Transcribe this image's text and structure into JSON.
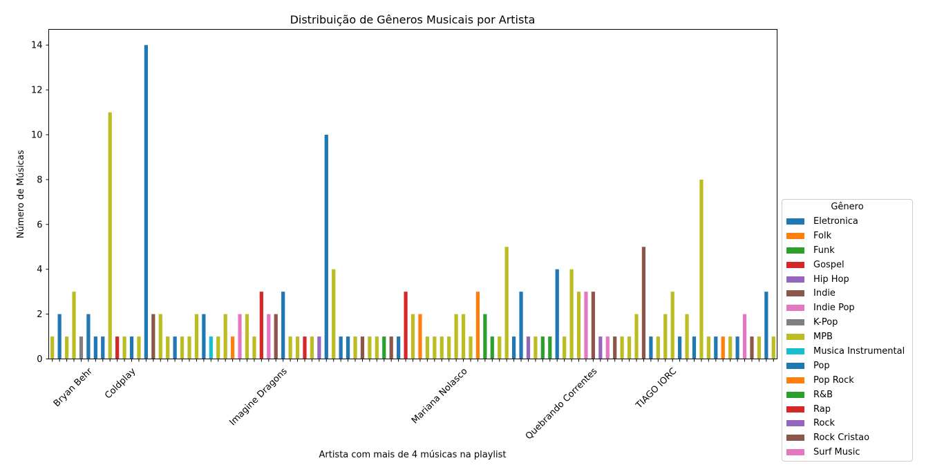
{
  "chart_data": {
    "type": "bar",
    "title": "Distribuição de Gêneros Musicais por Artista",
    "xlabel": "Artista com mais de 4 músicas na playlist",
    "ylabel": "Número de Músicas",
    "ylim": [
      0,
      14.7
    ],
    "yticks": [
      0,
      2,
      4,
      6,
      8,
      10,
      12,
      14
    ],
    "grid": false,
    "legend_title": "Gênero",
    "legend_position": "outside-right",
    "x_tick_labels": [
      "Bryan Behr",
      "Coldplay",
      "Imagine Dragons",
      "Mariana Nolasco",
      "Quebrando Correntes",
      "TIAGO IORC"
    ],
    "x_tick_label_at_bar": [
      5,
      11,
      32,
      57,
      75,
      86
    ],
    "genres": [
      {
        "name": "Eletronica",
        "color": "#1f77b4"
      },
      {
        "name": "Folk",
        "color": "#ff7f0e"
      },
      {
        "name": "Funk",
        "color": "#2ca02c"
      },
      {
        "name": "Gospel",
        "color": "#d62728"
      },
      {
        "name": "Hip Hop",
        "color": "#9467bd"
      },
      {
        "name": "Indie",
        "color": "#8c564b"
      },
      {
        "name": "Indie Pop",
        "color": "#e377c2"
      },
      {
        "name": "K-Pop",
        "color": "#7f7f7f"
      },
      {
        "name": "MPB",
        "color": "#bcbd22"
      },
      {
        "name": "Musica Instrumental",
        "color": "#17becf"
      },
      {
        "name": "Pop",
        "color": "#1f77b4"
      },
      {
        "name": "Pop Rock",
        "color": "#ff7f0e"
      },
      {
        "name": "R&B",
        "color": "#2ca02c"
      },
      {
        "name": "Rap",
        "color": "#d62728"
      },
      {
        "name": "Rock",
        "color": "#9467bd"
      },
      {
        "name": "Rock Cristao",
        "color": "#8c564b"
      },
      {
        "name": "Surf Music",
        "color": "#e377c2"
      }
    ],
    "bar_colors": [
      "#bcbd22",
      "#1f77b4",
      "#bcbd22",
      "#bcbd22",
      "#7f7f7f",
      "#1f77b4",
      "#1f77b4",
      "#1f77b4",
      "#bcbd22",
      "#d62728",
      "#bcbd22",
      "#1f77b4",
      "#bcbd22",
      "#1f77b4",
      "#8c564b",
      "#bcbd22",
      "#bcbd22",
      "#1f77b4",
      "#bcbd22",
      "#bcbd22",
      "#bcbd22",
      "#1f77b4",
      "#17becf",
      "#bcbd22",
      "#bcbd22",
      "#ff7f0e",
      "#e377c2",
      "#bcbd22",
      "#bcbd22",
      "#d62728",
      "#e377c2",
      "#8c564b",
      "#1f77b4",
      "#bcbd22",
      "#bcbd22",
      "#d62728",
      "#bcbd22",
      "#9467bd",
      "#1f77b4",
      "#bcbd22",
      "#1f77b4",
      "#1f77b4",
      "#bcbd22",
      "#8c564b",
      "#bcbd22",
      "#bcbd22",
      "#2ca02c",
      "#8c564b",
      "#1f77b4",
      "#d62728",
      "#bcbd22",
      "#ff7f0e",
      "#bcbd22",
      "#bcbd22",
      "#bcbd22",
      "#bcbd22",
      "#bcbd22",
      "#bcbd22",
      "#bcbd22",
      "#ff7f0e",
      "#2ca02c",
      "#2ca02c",
      "#bcbd22",
      "#bcbd22",
      "#1f77b4",
      "#1f77b4",
      "#9467bd",
      "#bcbd22",
      "#2ca02c",
      "#2ca02c",
      "#1f77b4",
      "#bcbd22",
      "#bcbd22",
      "#bcbd22",
      "#e377c2",
      "#8c564b",
      "#9467bd",
      "#e377c2",
      "#8c564b",
      "#bcbd22",
      "#bcbd22",
      "#bcbd22",
      "#8c564b",
      "#1f77b4",
      "#bcbd22",
      "#bcbd22",
      "#bcbd22",
      "#1f77b4",
      "#bcbd22",
      "#1f77b4",
      "#bcbd22",
      "#bcbd22",
      "#1f77b4",
      "#ff7f0e",
      "#bcbd22",
      "#1f77b4",
      "#e377c2",
      "#8c564b",
      "#bcbd22",
      "#1f77b4",
      "#bcbd22"
    ],
    "values": [
      1,
      2,
      1,
      3,
      1,
      2,
      1,
      1,
      11,
      1,
      1,
      1,
      1,
      14,
      2,
      2,
      1,
      1,
      1,
      1,
      2,
      2,
      1,
      1,
      2,
      1,
      2,
      2,
      1,
      3,
      2,
      2,
      3,
      1,
      1,
      1,
      1,
      1,
      10,
      4,
      1,
      1,
      1,
      1,
      1,
      1,
      1,
      1,
      1,
      3,
      2,
      2,
      1,
      1,
      1,
      1,
      2,
      2,
      1,
      3,
      2,
      1,
      1,
      5,
      1,
      3,
      1,
      1,
      1,
      1,
      4,
      1,
      4,
      3,
      3,
      3,
      1,
      1,
      1,
      1,
      1,
      2,
      5,
      1,
      1,
      2,
      3,
      1,
      2,
      1,
      8,
      1,
      1,
      1,
      1,
      1,
      2,
      1,
      1,
      3,
      1
    ]
  }
}
